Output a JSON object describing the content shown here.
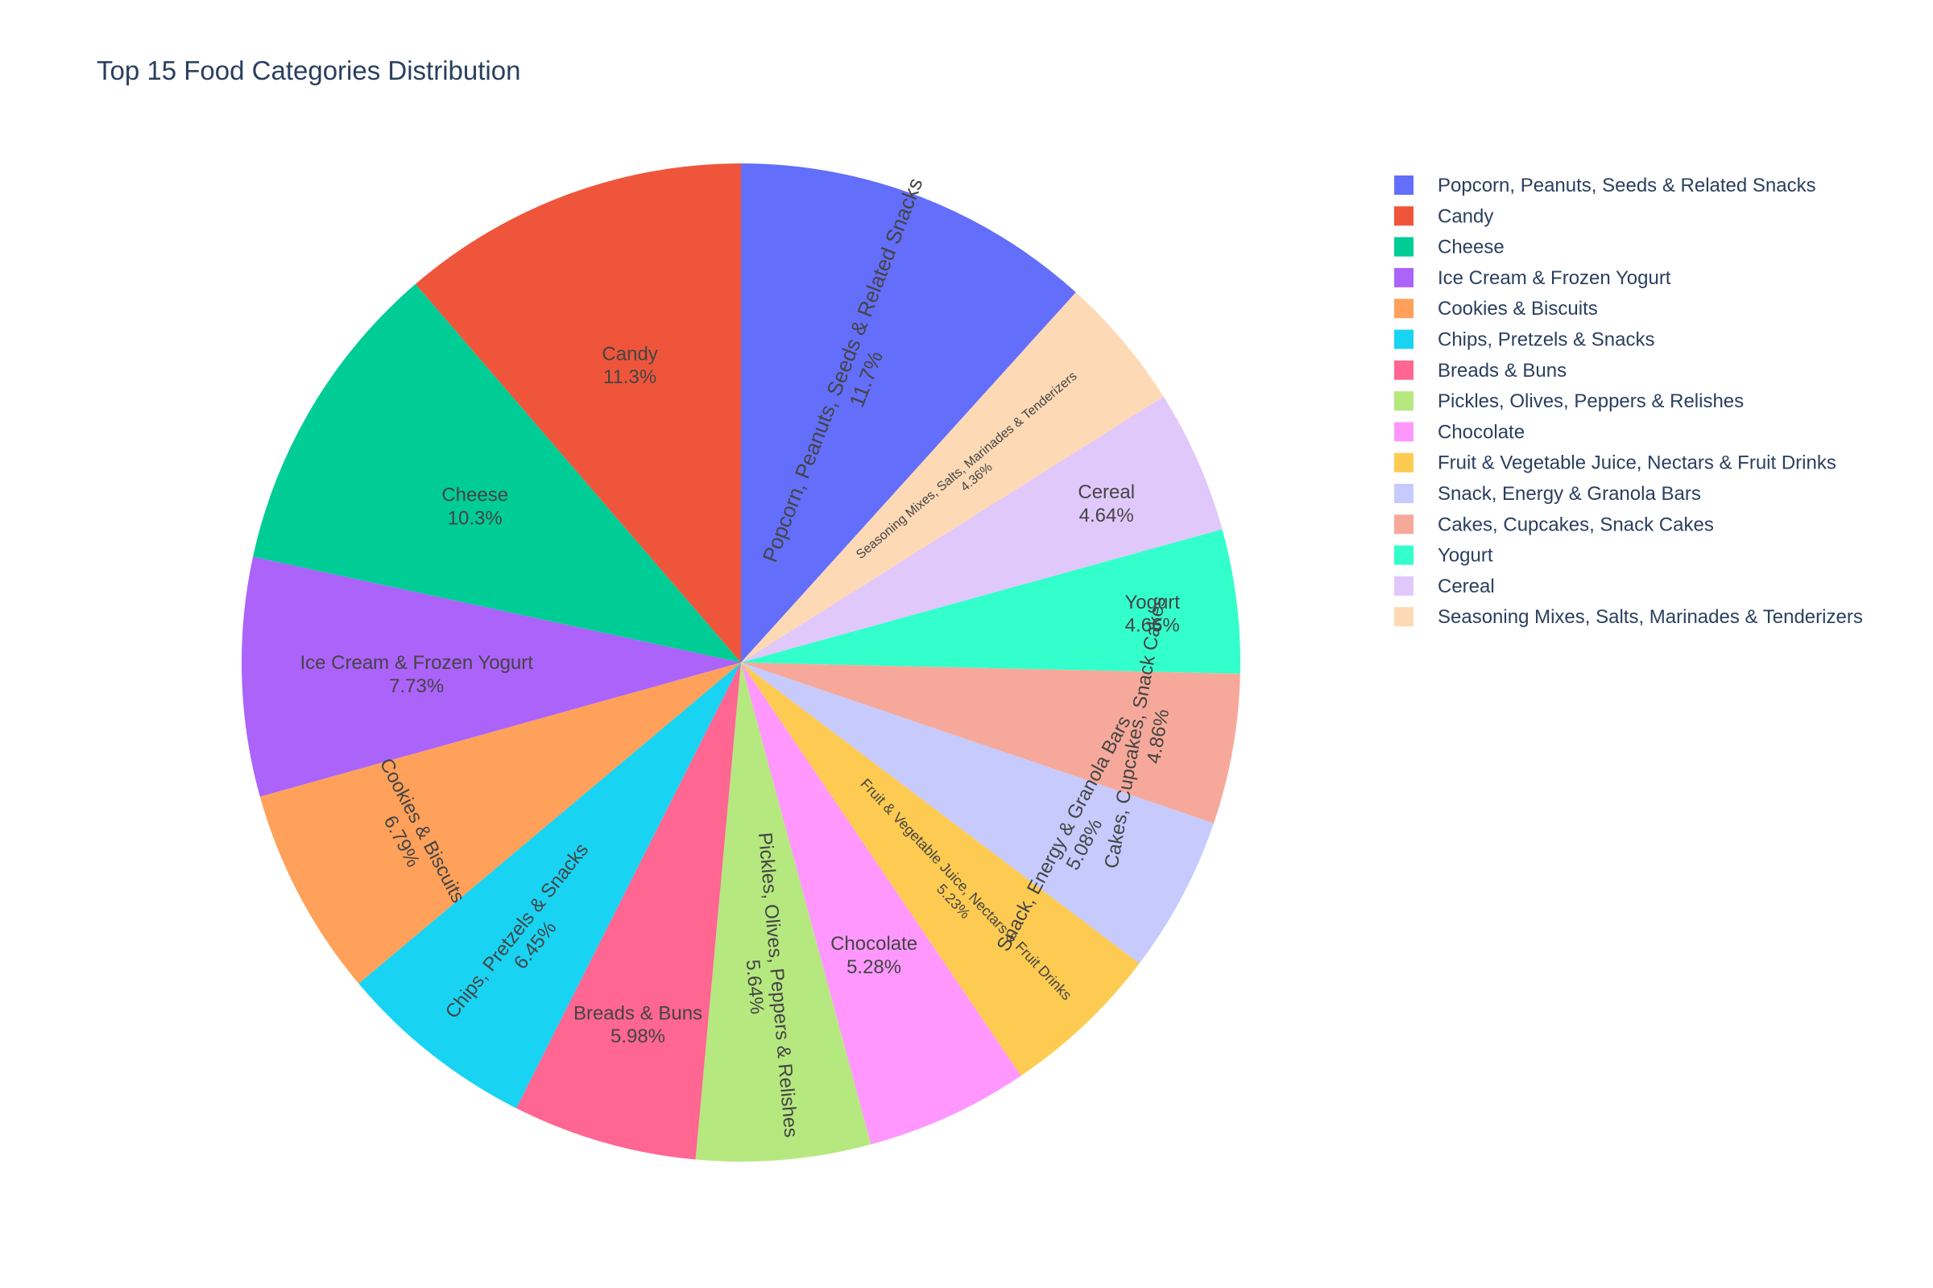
{
  "chart_data": {
    "type": "pie",
    "title": "Top 15 Food Categories Distribution",
    "direction": "clockwise",
    "legend_position": "right",
    "slices": [
      {
        "label": "Popcorn, Peanuts, Seeds & Related Snacks",
        "value": 11.7,
        "text": "11.7%",
        "color": "#636efa",
        "orientation": "radial",
        "text_color": "#ffffff"
      },
      {
        "label": "Seasoning Mixes, Salts, Marinades & Tenderizers",
        "value": 4.36,
        "text": "4.36%",
        "color": "#fed9b6",
        "orientation": "radial"
      },
      {
        "label": "Cereal",
        "value": 4.64,
        "text": "4.64%",
        "color": "#e0c8fa",
        "orientation": "horizontal"
      },
      {
        "label": "Yogurt",
        "value": 4.66,
        "text": "4.66%",
        "color": "#33ffcc",
        "orientation": "horizontal"
      },
      {
        "label": "Cakes, Cupcakes, Snack Cakes",
        "value": 4.86,
        "text": "4.86%",
        "color": "#f6a99a",
        "orientation": "tangential"
      },
      {
        "label": "Snack, Energy & Granola Bars",
        "value": 5.08,
        "text": "5.08%",
        "color": "#c6cafd",
        "orientation": "tangential"
      },
      {
        "label": "Fruit & Vegetable Juice, Nectars & Fruit Drinks",
        "value": 5.23,
        "text": "5.23%",
        "color": "#fecb52",
        "orientation": "radial"
      },
      {
        "label": "Chocolate",
        "value": 5.28,
        "text": "5.28%",
        "color": "#ff97ff",
        "orientation": "horizontal"
      },
      {
        "label": "Pickles, Olives, Peppers & Relishes",
        "value": 5.64,
        "text": "5.64%",
        "color": "#b6e880",
        "orientation": "radial"
      },
      {
        "label": "Breads & Buns",
        "value": 5.98,
        "text": "5.98%",
        "color": "#ff6692",
        "orientation": "horizontal"
      },
      {
        "label": "Chips, Pretzels & Snacks",
        "value": 6.45,
        "text": "6.45%",
        "color": "#19d3f3",
        "orientation": "radial"
      },
      {
        "label": "Cookies & Biscuits",
        "value": 6.79,
        "text": "6.79%",
        "color": "#ffa15a",
        "orientation": "tangential"
      },
      {
        "label": "Ice Cream & Frozen Yogurt",
        "value": 7.73,
        "text": "7.73%",
        "color": "#ab63fa",
        "orientation": "horizontal"
      },
      {
        "label": "Cheese",
        "value": 10.3,
        "text": "10.3%",
        "color": "#00cc96",
        "orientation": "horizontal"
      },
      {
        "label": "Candy",
        "value": 11.3,
        "text": "11.3%",
        "color": "#ef553b",
        "orientation": "horizontal"
      }
    ],
    "legend": [
      {
        "label": "Popcorn, Peanuts, Seeds & Related Snacks",
        "color": "#636efa"
      },
      {
        "label": "Candy",
        "color": "#ef553b"
      },
      {
        "label": "Cheese",
        "color": "#00cc96"
      },
      {
        "label": "Ice Cream & Frozen Yogurt",
        "color": "#ab63fa"
      },
      {
        "label": "Cookies & Biscuits",
        "color": "#ffa15a"
      },
      {
        "label": "Chips, Pretzels & Snacks",
        "color": "#19d3f3"
      },
      {
        "label": "Breads & Buns",
        "color": "#ff6692"
      },
      {
        "label": "Pickles, Olives, Peppers & Relishes",
        "color": "#b6e880"
      },
      {
        "label": "Chocolate",
        "color": "#ff97ff"
      },
      {
        "label": "Fruit & Vegetable Juice, Nectars & Fruit Drinks",
        "color": "#fecb52"
      },
      {
        "label": "Snack, Energy & Granola Bars",
        "color": "#c6cafd"
      },
      {
        "label": "Cakes, Cupcakes, Snack Cakes",
        "color": "#f6a99a"
      },
      {
        "label": "Yogurt",
        "color": "#33ffcc"
      },
      {
        "label": "Cereal",
        "color": "#e0c8fa"
      },
      {
        "label": "Seasoning Mixes, Salts, Marinades & Tenderizers",
        "color": "#fed9b6"
      }
    ]
  }
}
